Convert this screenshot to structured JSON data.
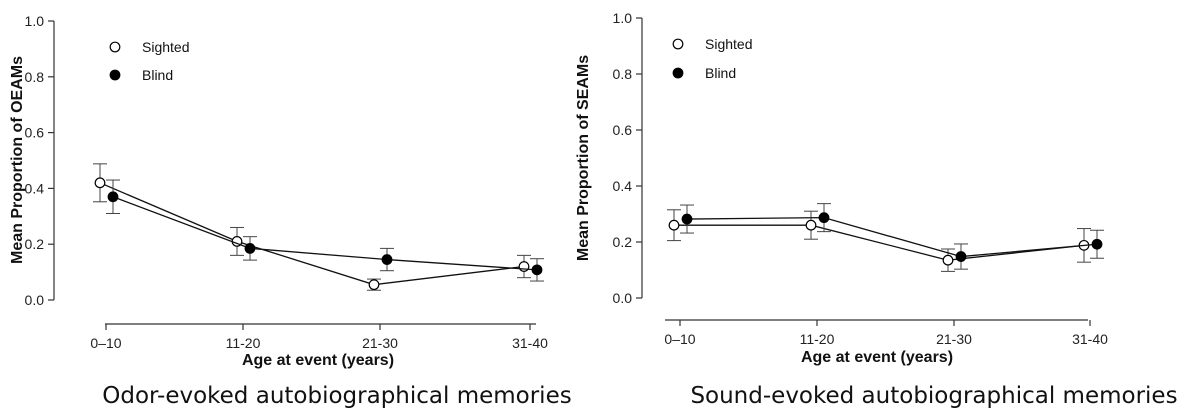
{
  "chart_data": [
    {
      "type": "line",
      "caption": "Odor-evoked autobiographical memories",
      "xlabel": "Age at event (years)",
      "ylabel": "Mean Proportion of OEAMs",
      "categories": [
        "0–10",
        "11-20",
        "21-30",
        "31-40"
      ],
      "ylim": [
        0,
        1
      ],
      "yticks": [
        "0.0",
        "0.2",
        "0.4",
        "0.6",
        "0.8",
        "1.0"
      ],
      "grid": false,
      "legend_position": "top-left",
      "series": [
        {
          "name": "Sighted",
          "marker": "open",
          "values": [
            0.42,
            0.21,
            0.055,
            0.12
          ],
          "errors": [
            0.068,
            0.05,
            0.02,
            0.04
          ]
        },
        {
          "name": "Blind",
          "marker": "filled",
          "values": [
            0.37,
            0.185,
            0.145,
            0.108
          ],
          "errors": [
            0.06,
            0.042,
            0.04,
            0.04
          ]
        }
      ]
    },
    {
      "type": "line",
      "caption": "Sound-evoked autobiographical memories",
      "xlabel": "Age at event (years)",
      "ylabel": "Mean Proportion of SEAMs",
      "categories": [
        "0–10",
        "11-20",
        "21-30",
        "31-40"
      ],
      "ylim": [
        0,
        1
      ],
      "yticks": [
        "0.0",
        "0.2",
        "0.4",
        "0.6",
        "0.8",
        "1.0"
      ],
      "grid": false,
      "legend_position": "top-left",
      "series": [
        {
          "name": "Sighted",
          "marker": "open",
          "values": [
            0.26,
            0.26,
            0.135,
            0.188
          ],
          "errors": [
            0.055,
            0.05,
            0.04,
            0.06
          ]
        },
        {
          "name": "Blind",
          "marker": "filled",
          "values": [
            0.282,
            0.287,
            0.148,
            0.192
          ],
          "errors": [
            0.05,
            0.05,
            0.045,
            0.05
          ]
        }
      ]
    }
  ]
}
